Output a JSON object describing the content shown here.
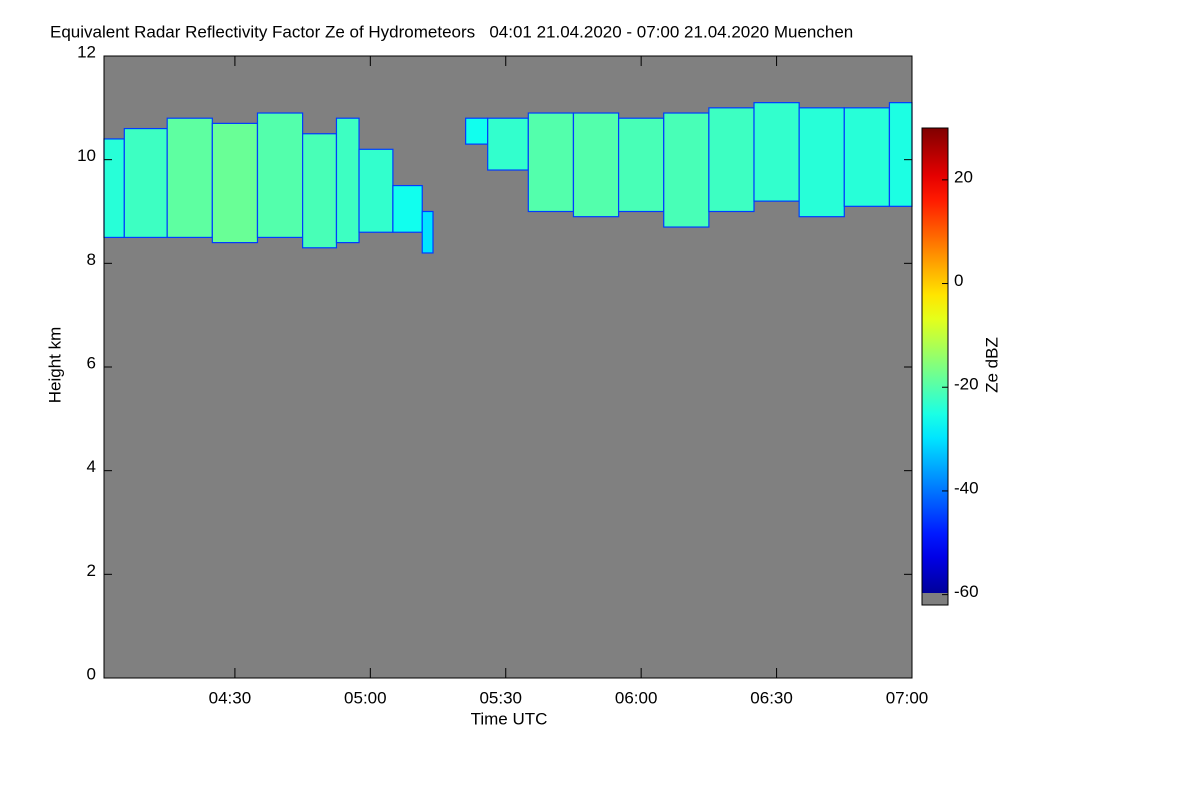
{
  "chart_data": {
    "type": "time-height",
    "title": "Equivalent Radar Reflectivity Factor Ze of Hydrometeors   04:01 21.04.2020 - 07:00 21.04.2020 Muenchen",
    "xlabel": "Time UTC",
    "ylabel": "Height km",
    "zlabel": "Ze dBZ",
    "xlim": [
      241,
      420
    ],
    "xticks": [
      {
        "value": 270,
        "label": "04:30"
      },
      {
        "value": 300,
        "label": "05:00"
      },
      {
        "value": 330,
        "label": "05:30"
      },
      {
        "value": 360,
        "label": "06:00"
      },
      {
        "value": 390,
        "label": "06:30"
      },
      {
        "value": 420,
        "label": "07:00"
      }
    ],
    "ylim": [
      0,
      12
    ],
    "yticks": [
      0,
      2,
      4,
      6,
      8,
      10,
      12
    ],
    "zlim": [
      -62,
      30
    ],
    "zticks": [
      -60,
      -40,
      -20,
      0,
      20
    ],
    "background": "#808080",
    "echo": {
      "x": [
        241,
        250,
        260,
        270,
        280,
        290,
        295,
        300,
        310,
        313,
        315,
        318,
        322,
        330,
        340,
        350,
        360,
        370,
        380,
        390,
        400,
        410,
        420
      ],
      "base": [
        8.5,
        8.5,
        8.5,
        8.4,
        8.5,
        8.3,
        8.4,
        8.6,
        8.6,
        8.2,
        null,
        null,
        10.3,
        9.8,
        9.0,
        8.9,
        9.0,
        8.7,
        9.0,
        9.2,
        8.9,
        9.1,
        9.1
      ],
      "top": [
        10.4,
        10.6,
        10.8,
        10.7,
        10.9,
        10.5,
        10.8,
        10.2,
        9.5,
        9.0,
        null,
        null,
        10.8,
        10.8,
        10.9,
        10.9,
        10.8,
        10.9,
        11.0,
        11.1,
        11.0,
        11.0,
        11.1
      ],
      "ze": [
        -24,
        -22,
        -19,
        -18,
        -20,
        -21,
        -22,
        -23,
        -26,
        -30,
        null,
        null,
        -26,
        -23,
        -20,
        -20,
        -21,
        -21,
        -22,
        -23,
        -24,
        -24,
        -25
      ]
    }
  }
}
